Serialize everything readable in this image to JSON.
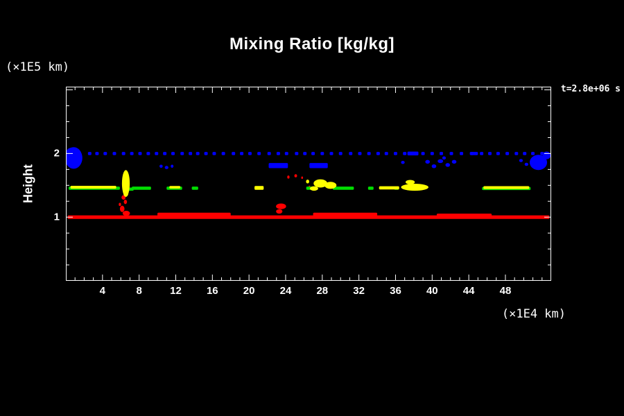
{
  "chart_data": {
    "type": "heatmap",
    "title": "Mixing Ratio [kg/kg]",
    "ylabel": "Height",
    "y_units": "(×1E5 km)",
    "xlabel": "(×1E4 km)",
    "annotation": "t=2.8e+06 s",
    "xlim": [
      0,
      53
    ],
    "ylim": [
      0,
      3.05
    ],
    "xticks": [
      4,
      8,
      12,
      16,
      20,
      24,
      28,
      32,
      36,
      40,
      44,
      48
    ],
    "yticks": [
      1,
      2
    ],
    "background": "#000000",
    "frame_color": "#ffffff",
    "layers": [
      {
        "name": "lower-cloud-band-red",
        "color": "#ff0000",
        "shapes": [
          [
            26.5,
            1.0,
            52.6,
            0.055,
            "r"
          ],
          [
            14.0,
            1.03,
            8.0,
            0.08,
            "r"
          ],
          [
            30.5,
            1.03,
            7.0,
            0.08,
            "r"
          ],
          [
            43.5,
            1.02,
            6.0,
            0.07,
            "r"
          ],
          [
            23.5,
            1.17,
            1.1,
            0.09,
            "e"
          ],
          [
            23.3,
            1.09,
            0.7,
            0.07,
            "e"
          ],
          [
            6.3,
            1.31,
            0.45,
            0.07,
            "e"
          ],
          [
            6.5,
            1.24,
            0.35,
            0.07,
            "e"
          ],
          [
            6.15,
            1.13,
            0.5,
            0.1,
            "e"
          ],
          [
            6.6,
            1.06,
            0.8,
            0.08,
            "e"
          ],
          [
            5.9,
            1.2,
            0.25,
            0.05,
            "e"
          ],
          [
            24.3,
            1.63,
            0.25,
            0.05,
            "e"
          ],
          [
            25.1,
            1.65,
            0.3,
            0.05,
            "e"
          ],
          [
            25.8,
            1.62,
            0.2,
            0.04,
            "e"
          ],
          [
            26.6,
            1.47,
            0.2,
            0.05,
            "e"
          ]
        ]
      },
      {
        "name": "mid-cloud-band-green",
        "color": "#00dd00",
        "shapes": [
          [
            3.1,
            1.455,
            5.6,
            0.05,
            "r"
          ],
          [
            7.0,
            1.44,
            0.8,
            0.05,
            "r"
          ],
          [
            8.25,
            1.455,
            2.1,
            0.05,
            "r"
          ],
          [
            11.85,
            1.455,
            1.7,
            0.05,
            "r"
          ],
          [
            14.1,
            1.455,
            0.7,
            0.05,
            "r"
          ],
          [
            26.7,
            1.455,
            0.9,
            0.05,
            "r"
          ],
          [
            30.3,
            1.455,
            2.3,
            0.05,
            "r"
          ],
          [
            33.3,
            1.455,
            0.6,
            0.05,
            "r"
          ],
          [
            36.1,
            1.455,
            0.5,
            0.05,
            "r"
          ],
          [
            48.1,
            1.45,
            5.3,
            0.05,
            "r"
          ]
        ]
      },
      {
        "name": "mid-cloud-band-yellow",
        "color": "#ffff00",
        "shapes": [
          [
            3.0,
            1.47,
            5.0,
            0.045,
            "r"
          ],
          [
            6.55,
            1.53,
            0.85,
            0.42,
            "e"
          ],
          [
            6.55,
            1.38,
            0.55,
            0.12,
            "e"
          ],
          [
            11.9,
            1.47,
            1.2,
            0.04,
            "r"
          ],
          [
            21.1,
            1.46,
            1.0,
            0.06,
            "r"
          ],
          [
            27.8,
            1.53,
            1.5,
            0.13,
            "e"
          ],
          [
            28.9,
            1.5,
            1.3,
            0.11,
            "e"
          ],
          [
            27.1,
            1.45,
            0.9,
            0.07,
            "e"
          ],
          [
            26.4,
            1.56,
            0.35,
            0.06,
            "e"
          ],
          [
            35.3,
            1.46,
            2.2,
            0.05,
            "r"
          ],
          [
            38.1,
            1.47,
            3.0,
            0.11,
            "e"
          ],
          [
            37.6,
            1.55,
            1.0,
            0.07,
            "e"
          ],
          [
            48.1,
            1.465,
            5.0,
            0.045,
            "r"
          ]
        ]
      },
      {
        "name": "upper-cloud-dots-blue",
        "color": "#0000ff",
        "dot_row": {
          "y": 2.0,
          "w": 0.38,
          "h": 0.05,
          "x": [
            1.0,
            2.6,
            3.4,
            4.3,
            5.3,
            6.3,
            7.2,
            8.1,
            9.0,
            9.9,
            10.8,
            11.7,
            12.7,
            13.6,
            14.4,
            15.3,
            16.2,
            17.2,
            18.3,
            19.2,
            20.1,
            21.1,
            22.2,
            23.2,
            24.1,
            25.2,
            26.1,
            27.0,
            28.0,
            29.0,
            30.0,
            31.1,
            32.1,
            33.1,
            34.1,
            35.0,
            36.0,
            37.0,
            38.0,
            39.0,
            40.0,
            41.0,
            42.1,
            43.2,
            44.3,
            45.4,
            46.3,
            47.2,
            48.2,
            49.2,
            50.1,
            51.0,
            52.0
          ]
        },
        "shapes": [
          [
            0.85,
            1.93,
            1.9,
            0.34,
            "e"
          ],
          [
            0.6,
            2.0,
            1.2,
            0.18,
            "e"
          ],
          [
            51.6,
            1.86,
            1.9,
            0.24,
            "e"
          ],
          [
            52.5,
            1.97,
            0.9,
            0.12,
            "e"
          ],
          [
            10.4,
            1.8,
            0.35,
            0.05,
            "e"
          ],
          [
            11.0,
            1.78,
            0.4,
            0.05,
            "e"
          ],
          [
            11.6,
            1.8,
            0.3,
            0.05,
            "e"
          ],
          [
            23.2,
            1.81,
            2.1,
            0.08,
            "r"
          ],
          [
            27.6,
            1.81,
            2.0,
            0.08,
            "r"
          ],
          [
            36.8,
            1.86,
            0.4,
            0.05,
            "e"
          ],
          [
            39.5,
            1.87,
            0.5,
            0.06,
            "e"
          ],
          [
            40.2,
            1.8,
            0.5,
            0.06,
            "e"
          ],
          [
            40.9,
            1.88,
            0.6,
            0.06,
            "e"
          ],
          [
            41.7,
            1.82,
            0.5,
            0.06,
            "e"
          ],
          [
            42.4,
            1.87,
            0.5,
            0.06,
            "e"
          ],
          [
            41.3,
            1.93,
            0.4,
            0.05,
            "e"
          ],
          [
            49.7,
            1.89,
            0.4,
            0.05,
            "e"
          ],
          [
            50.3,
            1.83,
            0.4,
            0.05,
            "e"
          ],
          [
            37.9,
            2.0,
            1.2,
            0.06,
            "r"
          ],
          [
            44.6,
            2.0,
            0.8,
            0.05,
            "r"
          ]
        ]
      }
    ]
  }
}
